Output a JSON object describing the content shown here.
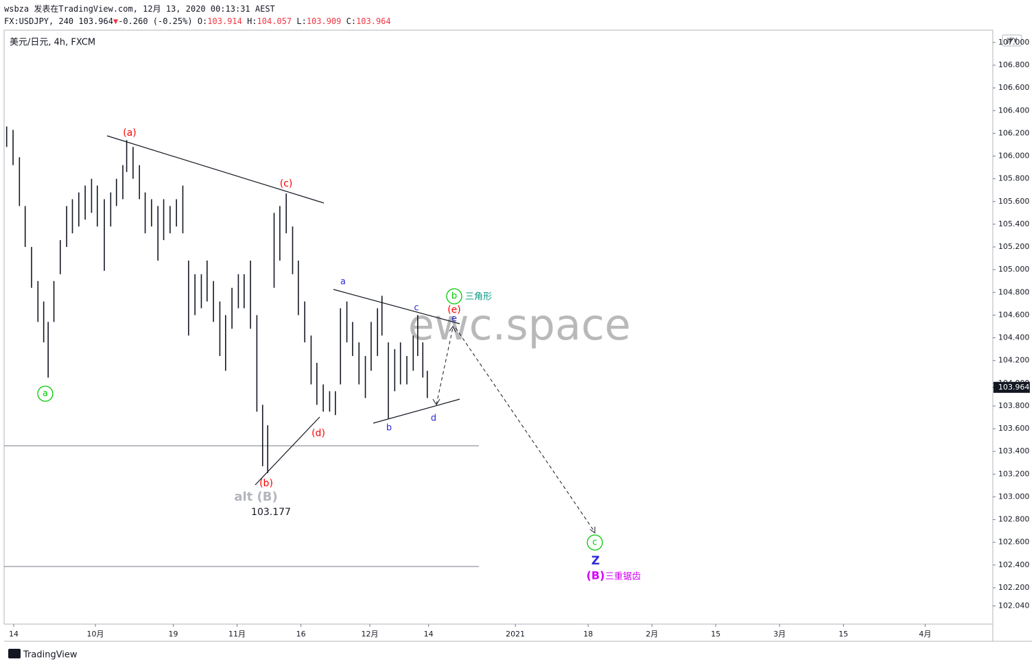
{
  "header": {
    "author_line": "wsbza 发表在TradingView.com, 12月 13, 2020 00:13:31 AEST",
    "symbol": "FX:USDJPY, 240",
    "last": "103.964",
    "change_arrow": "▼",
    "change": "-0.260 (-0.25%)",
    "o_label": "O:",
    "open": "103.914",
    "h_label": "H:",
    "high": "104.057",
    "l_label": "L:",
    "low": "103.909",
    "c_label": "C:",
    "close": "103.964"
  },
  "footer": {
    "brand": "TradingView"
  },
  "chart_data": {
    "type": "ohlc",
    "symbol_label": "美元/日元, 4h, FXCM",
    "currency": "JPY",
    "watermark": "ewc.space",
    "color": "#131722",
    "x": [
      -1.1,
      -0.1,
      0.9,
      1.8,
      2.8,
      3.8,
      4.7,
      5.4,
      6.3,
      7.3,
      8.3,
      9.2,
      10.2,
      11.2,
      12.2,
      13.1,
      14.2,
      15.2,
      16.1,
      17.1,
      17.7,
      18.7,
      19.7,
      20.6,
      21.6,
      22.6,
      23.5,
      24.5,
      25.5,
      26.5,
      27.4,
      28.4,
      29.4,
      30.3,
      31.3,
      32.3,
      33.2,
      34.2,
      35.2,
      36.1,
      37.1,
      38.1,
      39.0,
      39.8,
      40.8,
      41.7,
      42.7,
      43.7,
      44.6,
      45.6,
      46.6,
      47.5,
      48.5,
      49.5,
      50.4,
      51.2,
      52.2,
      53.1,
      54.1,
      55.1,
      56.0,
      57.0,
      57.7,
      58.7,
      59.7,
      60.6,
      61.6,
      62.6,
      63.3,
      64.1,
      64.8
    ],
    "high": [
      106.26,
      106.23,
      105.99,
      105.56,
      105.2,
      104.9,
      104.72,
      104.54,
      104.9,
      105.26,
      105.56,
      105.62,
      105.68,
      105.74,
      105.8,
      105.74,
      105.62,
      105.68,
      105.8,
      105.92,
      106.14,
      106.08,
      105.92,
      105.68,
      105.62,
      105.56,
      105.62,
      105.56,
      105.62,
      105.74,
      105.08,
      104.96,
      104.96,
      105.08,
      104.9,
      104.72,
      104.6,
      104.84,
      104.96,
      104.96,
      105.08,
      104.6,
      103.81,
      103.63,
      105.5,
      105.56,
      105.67,
      105.38,
      105.08,
      104.72,
      104.42,
      104.18,
      103.99,
      103.93,
      103.93,
      104.66,
      104.72,
      104.54,
      104.36,
      104.24,
      104.54,
      104.66,
      104.77,
      104.36,
      104.3,
      104.36,
      104.24,
      104.42,
      104.6,
      104.36,
      104.11
    ],
    "low": [
      106.08,
      105.92,
      105.56,
      105.2,
      104.84,
      104.54,
      104.36,
      104.05,
      104.54,
      104.96,
      105.2,
      105.32,
      105.38,
      105.44,
      105.5,
      105.38,
      104.99,
      105.38,
      105.56,
      105.62,
      105.86,
      105.8,
      105.62,
      105.32,
      105.38,
      105.08,
      105.26,
      105.32,
      105.38,
      105.32,
      104.42,
      104.6,
      104.66,
      104.72,
      104.54,
      104.24,
      104.11,
      104.48,
      104.66,
      104.66,
      104.48,
      103.75,
      103.27,
      103.21,
      104.84,
      105.08,
      105.32,
      104.96,
      104.6,
      104.36,
      103.99,
      103.81,
      103.75,
      103.75,
      103.72,
      103.99,
      104.36,
      104.24,
      103.99,
      103.87,
      104.11,
      104.24,
      104.42,
      103.69,
      103.93,
      103.99,
      103.99,
      104.11,
      104.24,
      104.05,
      103.87
    ],
    "last_price": 103.964,
    "xlim": [
      -1.5,
      153.4
    ],
    "xticks": [
      {
        "value": 0,
        "label": "14"
      },
      {
        "value": 12.8,
        "label": "10月"
      },
      {
        "value": 25,
        "label": "19"
      },
      {
        "value": 35,
        "label": "11月"
      },
      {
        "value": 45,
        "label": "16"
      },
      {
        "value": 55.8,
        "label": "12月"
      },
      {
        "value": 65,
        "label": "14"
      },
      {
        "value": 78.6,
        "label": "2021"
      },
      {
        "value": 90,
        "label": "18"
      },
      {
        "value": 100,
        "label": "2月"
      },
      {
        "value": 110,
        "label": "15"
      },
      {
        "value": 120,
        "label": "3月"
      },
      {
        "value": 130,
        "label": "15"
      },
      {
        "value": 142.8,
        "label": "4月"
      }
    ],
    "ylim": [
      101.88,
      107.108
    ],
    "yticks": [
      {
        "value": 107.0,
        "label": "107.000"
      },
      {
        "value": 106.8,
        "label": "106.800"
      },
      {
        "value": 106.6,
        "label": "106.600"
      },
      {
        "value": 106.4,
        "label": "106.400"
      },
      {
        "value": 106.2,
        "label": "106.200"
      },
      {
        "value": 106.0,
        "label": "106.000"
      },
      {
        "value": 105.8,
        "label": "105.800"
      },
      {
        "value": 105.6,
        "label": "105.600"
      },
      {
        "value": 105.4,
        "label": "105.400"
      },
      {
        "value": 105.2,
        "label": "105.200"
      },
      {
        "value": 105.0,
        "label": "105.000"
      },
      {
        "value": 104.8,
        "label": "104.800"
      },
      {
        "value": 104.6,
        "label": "104.600"
      },
      {
        "value": 104.4,
        "label": "104.400"
      },
      {
        "value": 104.2,
        "label": "104.200"
      },
      {
        "value": 104.0,
        "label": "104.000"
      },
      {
        "value": 103.8,
        "label": "103.800"
      },
      {
        "value": 103.6,
        "label": "103.600"
      },
      {
        "value": 103.4,
        "label": "103.400"
      },
      {
        "value": 103.2,
        "label": "103.200"
      },
      {
        "value": 103.0,
        "label": "103.000"
      },
      {
        "value": 102.8,
        "label": "102.800"
      },
      {
        "value": 102.6,
        "label": "102.600"
      },
      {
        "value": 102.4,
        "label": "102.400"
      },
      {
        "value": 102.2,
        "label": "102.200"
      },
      {
        "value": 102.04,
        "label": "102.040"
      }
    ],
    "annotations": [
      "(a)",
      "(c)",
      "(b)",
      "(d)",
      "(e)",
      "a",
      "b",
      "c",
      "d",
      "e",
      "a",
      "b",
      "c",
      "三角形",
      "Z",
      "(B)",
      "三重锯齿",
      "alt (B)",
      "103.177"
    ]
  }
}
